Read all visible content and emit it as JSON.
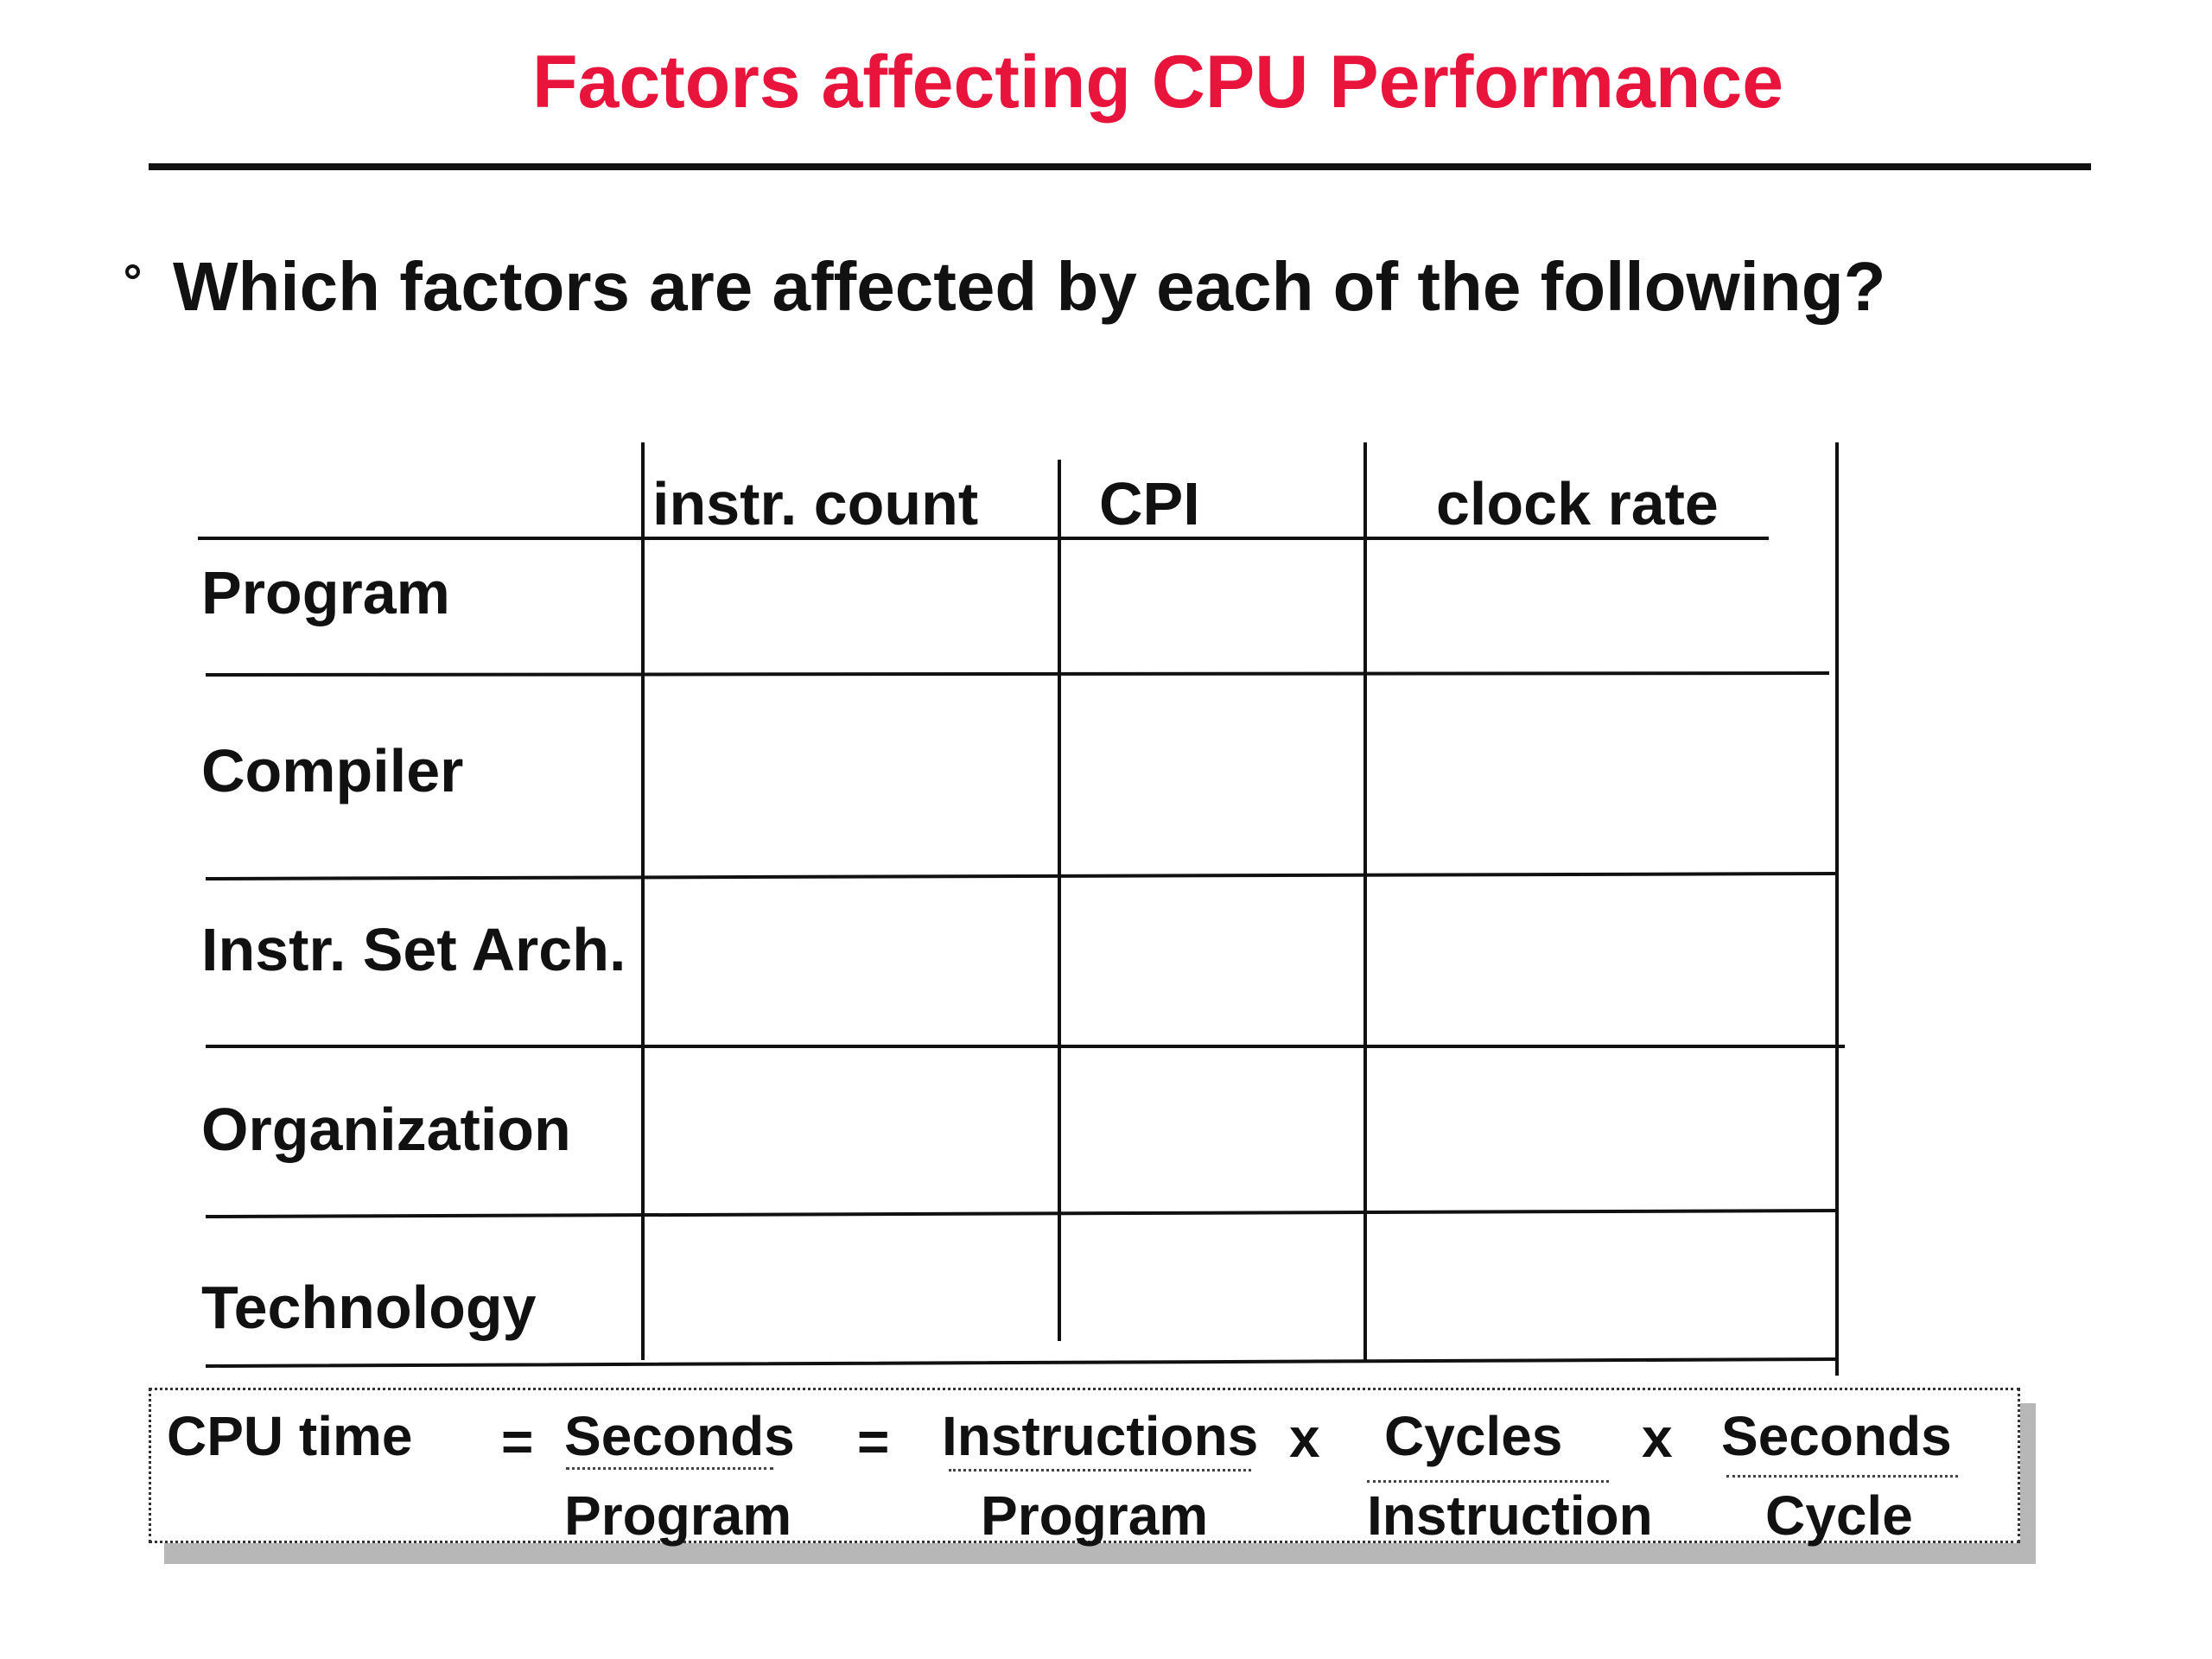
{
  "slide": {
    "title": "Factors affecting CPU Performance",
    "title_color": "#e8143c",
    "bullet": "Which factors are affected by each of the following?"
  },
  "table": {
    "columns": [
      "instr. count",
      "CPI",
      "clock rate"
    ],
    "rows": [
      "Program",
      "Compiler",
      "Instr. Set Arch.",
      "Organization",
      "Technology"
    ]
  },
  "formula": {
    "lhs": "CPU time",
    "eq1": "=",
    "eq2": "=",
    "times1": "x",
    "times2": "x",
    "f1_num": "Seconds",
    "f1_den": "Program",
    "f2_num": "Instructions",
    "f2_den": "Program",
    "f3_num": "Cycles",
    "f3_den": "Instruction",
    "f4_num": "Seconds",
    "f4_den": "Cycle"
  }
}
